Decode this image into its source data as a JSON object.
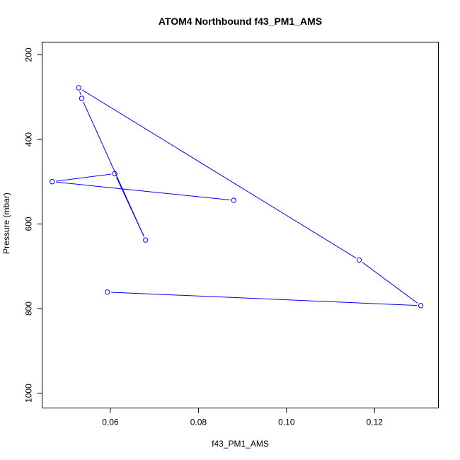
{
  "chart_data": {
    "type": "scatter",
    "title": "ATOM4 Northbound f43_PM1_AMS",
    "xlabel": "f43_PM1_AMS",
    "ylabel": "Pressure (mbar)",
    "xlim": [
      0.0445,
      0.1345
    ],
    "ylim": [
      1035,
      170
    ],
    "y_reversed": true,
    "xticks": [
      0.06,
      0.08,
      0.1,
      0.12
    ],
    "xtick_labels": [
      "0.06",
      "0.08",
      "0.10",
      "0.12"
    ],
    "yticks": [
      200,
      400,
      600,
      800,
      1000
    ],
    "ytick_labels": [
      "200",
      "400",
      "600",
      "800",
      "1000"
    ],
    "grid": false,
    "colors": {
      "series": "#0000ff",
      "axes": "#000000"
    },
    "series": [
      {
        "points": [
          {
            "x": 0.0593,
            "y": 761
          },
          {
            "x": 0.1305,
            "y": 793
          },
          {
            "x": 0.1165,
            "y": 685
          },
          {
            "x": 0.0528,
            "y": 278
          },
          {
            "x": 0.0535,
            "y": 303
          },
          {
            "x": 0.068,
            "y": 638
          },
          {
            "x": 0.061,
            "y": 481
          },
          {
            "x": 0.0468,
            "y": 500
          },
          {
            "x": 0.088,
            "y": 544
          }
        ]
      }
    ]
  }
}
